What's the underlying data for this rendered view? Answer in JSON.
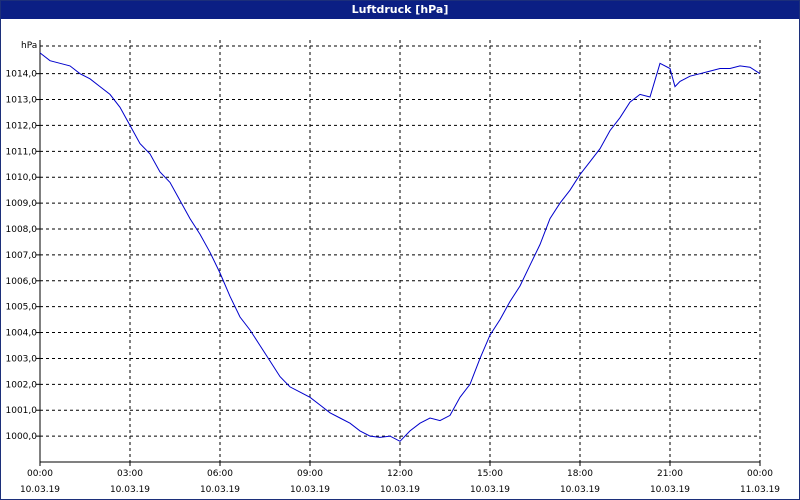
{
  "window": {
    "title": "Luftdruck [hPa]"
  },
  "chart_data": {
    "type": "line",
    "title": "Luftdruck [hPa]",
    "ylabel": "hPa",
    "xlabel": "",
    "ylim": [
      999,
      1015.3
    ],
    "grid": true,
    "x_ticks": [
      {
        "time": "00:00",
        "date": "10.03.19"
      },
      {
        "time": "03:00",
        "date": "10.03.19"
      },
      {
        "time": "06:00",
        "date": "10.03.19"
      },
      {
        "time": "09:00",
        "date": "10.03.19"
      },
      {
        "time": "12:00",
        "date": "10.03.19"
      },
      {
        "time": "15:00",
        "date": "10.03.19"
      },
      {
        "time": "18:00",
        "date": "10.03.19"
      },
      {
        "time": "21:00",
        "date": "10.03.19"
      },
      {
        "time": "00:00",
        "date": "11.03.19"
      }
    ],
    "y_ticks": [
      "1000,0",
      "1001,0",
      "1002,0",
      "1003,0",
      "1004,0",
      "1005,0",
      "1006,0",
      "1007,0",
      "1008,0",
      "1009,0",
      "1010,0",
      "1011,0",
      "1012,0",
      "1013,0",
      "1014,0"
    ],
    "line_color": "#0000cc",
    "series": [
      {
        "x": [
          "00:00",
          "00:20",
          "00:40",
          "01:00",
          "01:20",
          "01:40",
          "02:00",
          "02:20",
          "02:40",
          "03:00",
          "03:20",
          "03:40",
          "04:00",
          "04:20",
          "04:40",
          "05:00",
          "05:20",
          "05:40",
          "06:00",
          "06:20",
          "06:40",
          "07:00",
          "07:20",
          "07:40",
          "08:00",
          "08:20",
          "08:40",
          "09:00",
          "09:20",
          "09:40",
          "10:00",
          "10:20",
          "10:40",
          "11:00",
          "11:20",
          "11:40",
          "12:00",
          "12:20",
          "12:40",
          "13:00",
          "13:20",
          "13:40",
          "14:00",
          "14:20",
          "14:40",
          "15:00",
          "15:20",
          "15:40",
          "16:00",
          "16:20",
          "16:40",
          "17:00",
          "17:20",
          "17:40",
          "18:00",
          "18:20",
          "18:40",
          "19:00",
          "19:20",
          "19:40",
          "20:00",
          "20:20",
          "20:40",
          "21:00",
          "21:10",
          "21:20",
          "21:40",
          "22:00",
          "22:20",
          "22:40",
          "23:00",
          "23:20",
          "23:40",
          "24:00"
        ],
        "values": [
          1014.8,
          1014.5,
          1014.4,
          1014.3,
          1014.0,
          1013.8,
          1013.5,
          1013.2,
          1012.7,
          1012.0,
          1011.3,
          1010.9,
          1010.2,
          1009.8,
          1009.1,
          1008.4,
          1007.8,
          1007.1,
          1006.3,
          1005.4,
          1004.6,
          1004.1,
          1003.5,
          1002.9,
          1002.3,
          1001.9,
          1001.7,
          1001.5,
          1001.2,
          1000.9,
          1000.7,
          1000.5,
          1000.2,
          1000.0,
          999.95,
          1000.0,
          999.8,
          1000.2,
          1000.5,
          1000.7,
          1000.6,
          1000.8,
          1001.5,
          1002.0,
          1003.0,
          1003.9,
          1004.5,
          1005.2,
          1005.8,
          1006.6,
          1007.4,
          1008.4,
          1009.0,
          1009.5,
          1010.1,
          1010.6,
          1011.1,
          1011.8,
          1012.3,
          1012.9,
          1013.2,
          1013.1,
          1014.4,
          1014.2,
          1013.5,
          1013.7,
          1013.9,
          1014.0,
          1014.1,
          1014.2,
          1014.2,
          1014.3,
          1014.25,
          1014.0
        ]
      }
    ]
  }
}
